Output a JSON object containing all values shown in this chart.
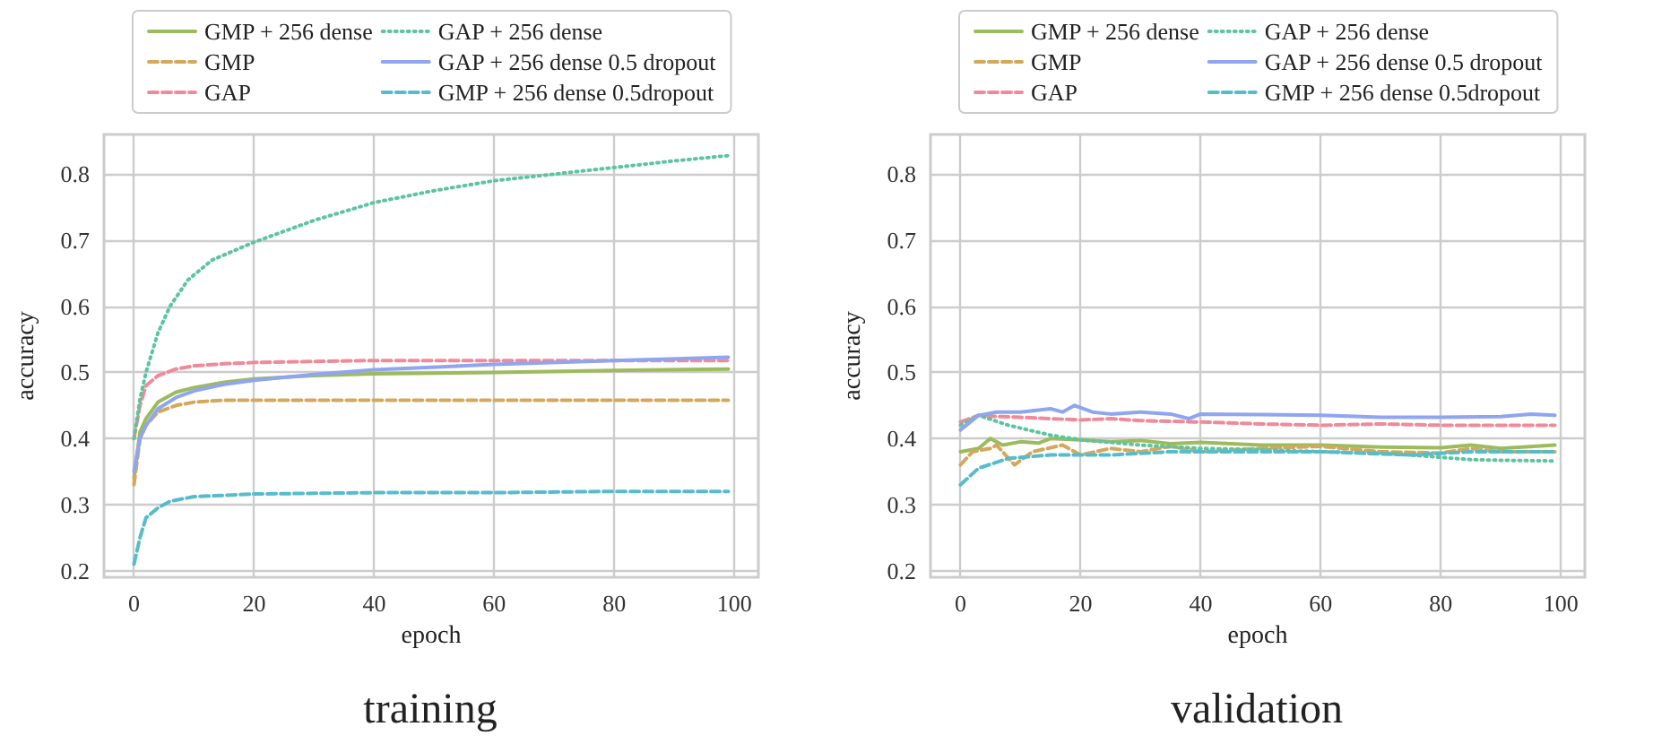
{
  "chart_data": [
    {
      "type": "line",
      "title": "training",
      "xlabel": "epoch",
      "ylabel": "accuracy",
      "xlim": [
        -5,
        104
      ],
      "ylim": [
        0.19,
        0.86
      ],
      "xticks": [
        0,
        20,
        40,
        60,
        80,
        100
      ],
      "yticks": [
        0.2,
        0.3,
        0.4,
        0.5,
        0.6,
        0.7,
        0.8
      ],
      "grid": true,
      "legend": "top",
      "series": [
        {
          "name": "GMP + 256 dense",
          "color": "#9cbb5c",
          "line_style": "solid",
          "x": [
            0,
            1,
            2,
            4,
            7,
            10,
            15,
            20,
            30,
            40,
            60,
            80,
            99
          ],
          "values": [
            0.34,
            0.41,
            0.43,
            0.455,
            0.47,
            0.477,
            0.485,
            0.49,
            0.495,
            0.498,
            0.5,
            0.503,
            0.505
          ]
        },
        {
          "name": "GMP",
          "color": "#d4a85c",
          "line_style": "dashed",
          "x": [
            0,
            1,
            2,
            4,
            7,
            10,
            15,
            20,
            40,
            60,
            80,
            99
          ],
          "values": [
            0.33,
            0.4,
            0.42,
            0.44,
            0.45,
            0.455,
            0.458,
            0.458,
            0.458,
            0.458,
            0.458,
            0.458
          ]
        },
        {
          "name": "GAP",
          "color": "#f08a9a",
          "line_style": "dashed",
          "x": [
            0,
            1,
            2,
            4,
            7,
            10,
            15,
            20,
            40,
            60,
            80,
            99
          ],
          "values": [
            0.4,
            0.45,
            0.48,
            0.495,
            0.505,
            0.51,
            0.513,
            0.515,
            0.518,
            0.518,
            0.518,
            0.518
          ]
        },
        {
          "name": "GAP + 256 dense",
          "color": "#5ec4a0",
          "line_style": "dotted",
          "x": [
            0,
            1,
            2,
            4,
            6,
            9,
            13,
            20,
            30,
            40,
            50,
            60,
            70,
            80,
            90,
            99
          ],
          "values": [
            0.4,
            0.46,
            0.5,
            0.56,
            0.6,
            0.64,
            0.67,
            0.697,
            0.73,
            0.757,
            0.775,
            0.79,
            0.8,
            0.81,
            0.82,
            0.828
          ]
        },
        {
          "name": "GAP + 256 dense 0.5 dropout",
          "color": "#8fa5f0",
          "line_style": "solid",
          "x": [
            0,
            1,
            2,
            4,
            7,
            10,
            15,
            20,
            30,
            40,
            60,
            80,
            99
          ],
          "values": [
            0.35,
            0.4,
            0.42,
            0.445,
            0.462,
            0.472,
            0.482,
            0.488,
            0.497,
            0.504,
            0.512,
            0.518,
            0.523
          ]
        },
        {
          "name": "GMP + 256 dense 0.5dropout",
          "color": "#56bccc",
          "line_style": "dashed",
          "x": [
            0,
            1,
            2,
            4,
            6,
            10,
            20,
            40,
            60,
            80,
            99
          ],
          "values": [
            0.21,
            0.25,
            0.28,
            0.295,
            0.305,
            0.312,
            0.316,
            0.318,
            0.318,
            0.32,
            0.32
          ]
        }
      ]
    },
    {
      "type": "line",
      "title": "validation",
      "xlabel": "epoch",
      "ylabel": "accuracy",
      "xlim": [
        -5,
        104
      ],
      "ylim": [
        0.19,
        0.86
      ],
      "xticks": [
        0,
        20,
        40,
        60,
        80,
        100
      ],
      "yticks": [
        0.2,
        0.3,
        0.4,
        0.5,
        0.6,
        0.7,
        0.8
      ],
      "grid": true,
      "legend": "top",
      "series": [
        {
          "name": "GMP + 256 dense",
          "color": "#9cbb5c",
          "line_style": "solid",
          "x": [
            0,
            3,
            5,
            7,
            10,
            13,
            15,
            20,
            25,
            30,
            35,
            40,
            50,
            60,
            70,
            80,
            85,
            90,
            99
          ],
          "values": [
            0.38,
            0.385,
            0.4,
            0.39,
            0.395,
            0.393,
            0.4,
            0.398,
            0.395,
            0.397,
            0.392,
            0.394,
            0.39,
            0.39,
            0.387,
            0.386,
            0.39,
            0.385,
            0.39
          ]
        },
        {
          "name": "GMP",
          "color": "#d4a85c",
          "line_style": "dashed",
          "x": [
            0,
            2,
            5,
            6,
            9,
            12,
            17,
            20,
            25,
            30,
            35,
            40,
            50,
            60,
            70,
            80,
            85,
            90,
            99
          ],
          "values": [
            0.36,
            0.38,
            0.385,
            0.39,
            0.36,
            0.38,
            0.39,
            0.375,
            0.385,
            0.38,
            0.388,
            0.38,
            0.385,
            0.388,
            0.38,
            0.378,
            0.385,
            0.38,
            0.38
          ]
        },
        {
          "name": "GAP",
          "color": "#f08a9a",
          "line_style": "dashed",
          "x": [
            0,
            3,
            7,
            10,
            15,
            20,
            25,
            30,
            40,
            50,
            60,
            70,
            80,
            90,
            99
          ],
          "values": [
            0.425,
            0.435,
            0.433,
            0.432,
            0.43,
            0.428,
            0.43,
            0.427,
            0.425,
            0.422,
            0.42,
            0.422,
            0.42,
            0.42,
            0.42
          ]
        },
        {
          "name": "GAP + 256 dense",
          "color": "#5ec4a0",
          "line_style": "dotted",
          "x": [
            0,
            3,
            8,
            15,
            20,
            30,
            40,
            50,
            60,
            70,
            75,
            85,
            90,
            99
          ],
          "values": [
            0.42,
            0.435,
            0.42,
            0.405,
            0.398,
            0.39,
            0.385,
            0.383,
            0.38,
            0.378,
            0.375,
            0.368,
            0.367,
            0.366
          ]
        },
        {
          "name": "GAP + 256 dense 0.5 dropout",
          "color": "#8fa5f0",
          "line_style": "solid",
          "x": [
            0,
            3,
            6,
            10,
            15,
            17,
            19,
            22,
            25,
            30,
            35,
            38,
            40,
            50,
            60,
            70,
            80,
            90,
            95,
            99
          ],
          "values": [
            0.413,
            0.435,
            0.44,
            0.44,
            0.445,
            0.44,
            0.45,
            0.44,
            0.437,
            0.44,
            0.437,
            0.43,
            0.437,
            0.436,
            0.435,
            0.432,
            0.432,
            0.433,
            0.437,
            0.435
          ]
        },
        {
          "name": "GMP + 256 dense 0.5dropout",
          "color": "#56bccc",
          "line_style": "dashed",
          "x": [
            0,
            3,
            8,
            15,
            25,
            35,
            45,
            60,
            75,
            85,
            99
          ],
          "values": [
            0.33,
            0.355,
            0.37,
            0.375,
            0.375,
            0.38,
            0.38,
            0.38,
            0.375,
            0.38,
            0.38
          ]
        }
      ]
    }
  ]
}
